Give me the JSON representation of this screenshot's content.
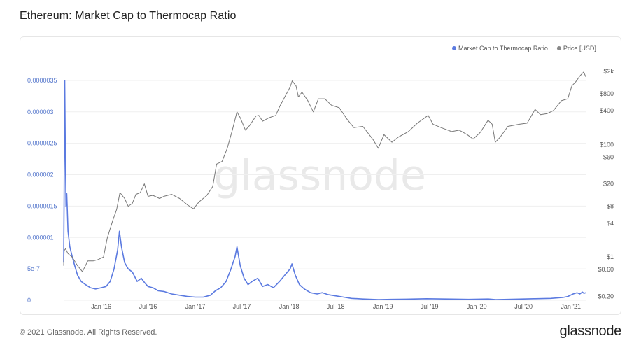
{
  "title": "Ethereum: Market Cap to Thermocap Ratio",
  "watermark": "glassnode",
  "footer": {
    "copyright": "© 2021 Glassnode. All Rights Reserved.",
    "logo": "glassnode"
  },
  "colors": {
    "ratio": "#5b7ae0",
    "price": "#777777"
  },
  "chart_data": {
    "type": "line",
    "legend": [
      {
        "name": "Market Cap to Thermocap Ratio",
        "color": "#5b7ae0"
      },
      {
        "name": "Price [USD]",
        "color": "#888888"
      }
    ],
    "legend_position": "top-right",
    "grid": true,
    "x_ticks": [
      "Jan '16",
      "Jul '16",
      "Jan '17",
      "Jul '17",
      "Jan '18",
      "Jul '18",
      "Jan '19",
      "Jul '19",
      "Jan '20",
      "Jul '20",
      "Jan '21"
    ],
    "x_range": [
      "2015-08-08",
      "2021-02-28"
    ],
    "y_left": {
      "ticks": [
        "0",
        "5e-7",
        "0.000001",
        "0.0000015",
        "0.000002",
        "0.0000025",
        "0.000003",
        "0.0000035"
      ],
      "values": [
        0,
        5e-07,
        1e-06,
        1.5e-06,
        2e-06,
        2.5e-06,
        3e-06,
        3.5e-06
      ],
      "range": [
        0,
        3.7e-06
      ]
    },
    "y_right": {
      "scale": "log",
      "ticks": [
        "$0.20",
        "$0.60",
        "$1",
        "$4",
        "$8",
        "$20",
        "$60",
        "$100",
        "$400",
        "$800",
        "$2k"
      ],
      "values": [
        0.2,
        0.6,
        1,
        4,
        8,
        20,
        60,
        100,
        400,
        800,
        2000
      ],
      "range": [
        0.17,
        2300
      ]
    },
    "series": [
      {
        "name": "Market Cap to Thermocap Ratio",
        "axis": "left",
        "points": [
          [
            "2015-08-08",
            6e-07
          ],
          [
            "2015-08-10",
            1.8e-06
          ],
          [
            "2015-08-12",
            3.5e-06
          ],
          [
            "2015-08-14",
            2.6e-06
          ],
          [
            "2015-08-17",
            1.5e-06
          ],
          [
            "2015-08-20",
            1.7e-06
          ],
          [
            "2015-08-25",
            1.1e-06
          ],
          [
            "2015-09-01",
            8.5e-07
          ],
          [
            "2015-09-10",
            7e-07
          ],
          [
            "2015-09-20",
            5.5e-07
          ],
          [
            "2015-10-01",
            4e-07
          ],
          [
            "2015-10-15",
            3e-07
          ],
          [
            "2015-11-01",
            2.5e-07
          ],
          [
            "2015-11-20",
            2e-07
          ],
          [
            "2015-12-10",
            1.8e-07
          ],
          [
            "2016-01-01",
            2e-07
          ],
          [
            "2016-01-20",
            2.2e-07
          ],
          [
            "2016-02-05",
            3e-07
          ],
          [
            "2016-02-20",
            5e-07
          ],
          [
            "2016-03-05",
            8e-07
          ],
          [
            "2016-03-12",
            1.1e-06
          ],
          [
            "2016-03-20",
            8.5e-07
          ],
          [
            "2016-04-01",
            6e-07
          ],
          [
            "2016-04-15",
            5e-07
          ],
          [
            "2016-05-01",
            4.5e-07
          ],
          [
            "2016-05-20",
            3e-07
          ],
          [
            "2016-06-05",
            3.5e-07
          ],
          [
            "2016-06-18",
            2.8e-07
          ],
          [
            "2016-07-01",
            2.2e-07
          ],
          [
            "2016-07-20",
            2e-07
          ],
          [
            "2016-08-10",
            1.5e-07
          ],
          [
            "2016-09-01",
            1.4e-07
          ],
          [
            "2016-10-01",
            1e-07
          ],
          [
            "2016-11-01",
            8e-08
          ],
          [
            "2016-12-01",
            6e-08
          ],
          [
            "2017-01-01",
            5e-08
          ],
          [
            "2017-02-01",
            5e-08
          ],
          [
            "2017-03-01",
            8e-08
          ],
          [
            "2017-03-20",
            1.5e-07
          ],
          [
            "2017-04-10",
            2e-07
          ],
          [
            "2017-05-01",
            3e-07
          ],
          [
            "2017-05-20",
            5e-07
          ],
          [
            "2017-06-05",
            7e-07
          ],
          [
            "2017-06-12",
            8.5e-07
          ],
          [
            "2017-06-25",
            5.5e-07
          ],
          [
            "2017-07-10",
            3.5e-07
          ],
          [
            "2017-07-25",
            2.5e-07
          ],
          [
            "2017-08-10",
            3e-07
          ],
          [
            "2017-09-01",
            3.5e-07
          ],
          [
            "2017-09-20",
            2.2e-07
          ],
          [
            "2017-10-10",
            2.5e-07
          ],
          [
            "2017-11-01",
            2e-07
          ],
          [
            "2017-11-25",
            3e-07
          ],
          [
            "2017-12-15",
            4e-07
          ],
          [
            "2018-01-05",
            5e-07
          ],
          [
            "2018-01-12",
            5.8e-07
          ],
          [
            "2018-01-25",
            4e-07
          ],
          [
            "2018-02-10",
            2.5e-07
          ],
          [
            "2018-03-01",
            1.8e-07
          ],
          [
            "2018-03-25",
            1.2e-07
          ],
          [
            "2018-04-20",
            1e-07
          ],
          [
            "2018-05-10",
            1.2e-07
          ],
          [
            "2018-06-01",
            9e-08
          ],
          [
            "2018-07-01",
            7e-08
          ],
          [
            "2018-08-01",
            5e-08
          ],
          [
            "2018-09-01",
            3e-08
          ],
          [
            "2018-10-15",
            2e-08
          ],
          [
            "2018-12-15",
            1e-08
          ],
          [
            "2019-02-01",
            1.5e-08
          ],
          [
            "2019-04-01",
            1.8e-08
          ],
          [
            "2019-06-20",
            2.5e-08
          ],
          [
            "2019-09-01",
            2e-08
          ],
          [
            "2019-12-01",
            1.5e-08
          ],
          [
            "2020-02-15",
            2e-08
          ],
          [
            "2020-03-15",
            1e-08
          ],
          [
            "2020-06-01",
            1.8e-08
          ],
          [
            "2020-08-15",
            2.5e-08
          ],
          [
            "2020-10-15",
            3e-08
          ],
          [
            "2020-12-01",
            4.5e-08
          ],
          [
            "2020-12-20",
            6e-08
          ],
          [
            "2021-01-10",
            1e-07
          ],
          [
            "2021-01-25",
            1.2e-07
          ],
          [
            "2021-02-05",
            1e-07
          ],
          [
            "2021-02-15",
            1.3e-07
          ],
          [
            "2021-02-21",
            1.1e-07
          ],
          [
            "2021-02-28",
            1.2e-07
          ]
        ]
      },
      {
        "name": "Price [USD]",
        "axis": "right",
        "points": [
          [
            "2015-08-08",
            0.7
          ],
          [
            "2015-08-10",
            1.3
          ],
          [
            "2015-08-15",
            1.4
          ],
          [
            "2015-08-25",
            1.15
          ],
          [
            "2015-09-10",
            1.0
          ],
          [
            "2015-10-01",
            0.7
          ],
          [
            "2015-10-20",
            0.55
          ],
          [
            "2015-11-10",
            0.85
          ],
          [
            "2015-12-01",
            0.85
          ],
          [
            "2015-12-20",
            0.9
          ],
          [
            "2016-01-10",
            1.0
          ],
          [
            "2016-01-25",
            2.2
          ],
          [
            "2016-02-15",
            4.5
          ],
          [
            "2016-03-01",
            7.0
          ],
          [
            "2016-03-14",
            14.0
          ],
          [
            "2016-04-01",
            11.0
          ],
          [
            "2016-04-15",
            8.0
          ],
          [
            "2016-05-01",
            9.0
          ],
          [
            "2016-05-15",
            13.0
          ],
          [
            "2016-06-01",
            14.0
          ],
          [
            "2016-06-17",
            20.0
          ],
          [
            "2016-07-01",
            12.0
          ],
          [
            "2016-07-20",
            12.5
          ],
          [
            "2016-08-15",
            11.0
          ],
          [
            "2016-09-01",
            12.0
          ],
          [
            "2016-10-01",
            13.0
          ],
          [
            "2016-11-01",
            11.0
          ],
          [
            "2016-12-01",
            8.5
          ],
          [
            "2016-12-25",
            7.2
          ],
          [
            "2017-01-15",
            9.5
          ],
          [
            "2017-02-15",
            12.5
          ],
          [
            "2017-03-10",
            18.0
          ],
          [
            "2017-03-25",
            45.0
          ],
          [
            "2017-04-15",
            50.0
          ],
          [
            "2017-05-05",
            85.0
          ],
          [
            "2017-05-25",
            180.0
          ],
          [
            "2017-06-12",
            380.0
          ],
          [
            "2017-06-25",
            300.0
          ],
          [
            "2017-07-15",
            180.0
          ],
          [
            "2017-08-01",
            220.0
          ],
          [
            "2017-08-25",
            320.0
          ],
          [
            "2017-09-05",
            330.0
          ],
          [
            "2017-09-20",
            260.0
          ],
          [
            "2017-10-15",
            300.0
          ],
          [
            "2017-11-10",
            330.0
          ],
          [
            "2017-11-25",
            470.0
          ],
          [
            "2017-12-15",
            700.0
          ],
          [
            "2018-01-05",
            1050.0
          ],
          [
            "2018-01-13",
            1350.0
          ],
          [
            "2018-01-28",
            1100.0
          ],
          [
            "2018-02-06",
            700.0
          ],
          [
            "2018-02-20",
            850.0
          ],
          [
            "2018-03-15",
            600.0
          ],
          [
            "2018-04-05",
            380.0
          ],
          [
            "2018-04-25",
            650.0
          ],
          [
            "2018-05-20",
            650.0
          ],
          [
            "2018-06-15",
            500.0
          ],
          [
            "2018-07-15",
            450.0
          ],
          [
            "2018-08-15",
            280.0
          ],
          [
            "2018-09-10",
            200.0
          ],
          [
            "2018-10-15",
            210.0
          ],
          [
            "2018-11-25",
            120.0
          ],
          [
            "2018-12-14",
            86.0
          ],
          [
            "2019-01-05",
            150.0
          ],
          [
            "2019-02-05",
            110.0
          ],
          [
            "2019-03-01",
            135.0
          ],
          [
            "2019-04-10",
            170.0
          ],
          [
            "2019-05-15",
            240.0
          ],
          [
            "2019-06-26",
            330.0
          ],
          [
            "2019-07-15",
            230.0
          ],
          [
            "2019-08-15",
            200.0
          ],
          [
            "2019-09-25",
            170.0
          ],
          [
            "2019-10-25",
            180.0
          ],
          [
            "2019-11-25",
            150.0
          ],
          [
            "2019-12-18",
            125.0
          ],
          [
            "2020-01-15",
            165.0
          ],
          [
            "2020-02-14",
            270.0
          ],
          [
            "2020-03-01",
            230.0
          ],
          [
            "2020-03-13",
            110.0
          ],
          [
            "2020-04-01",
            135.0
          ],
          [
            "2020-05-01",
            210.0
          ],
          [
            "2020-06-15",
            230.0
          ],
          [
            "2020-07-15",
            240.0
          ],
          [
            "2020-08-15",
            420.0
          ],
          [
            "2020-09-05",
            340.0
          ],
          [
            "2020-10-01",
            355.0
          ],
          [
            "2020-10-25",
            400.0
          ],
          [
            "2020-11-25",
            600.0
          ],
          [
            "2020-12-20",
            650.0
          ],
          [
            "2021-01-05",
            1100.0
          ],
          [
            "2021-01-20",
            1300.0
          ],
          [
            "2021-02-05",
            1650.0
          ],
          [
            "2021-02-20",
            1950.0
          ],
          [
            "2021-02-28",
            1600.0
          ]
        ]
      }
    ]
  }
}
